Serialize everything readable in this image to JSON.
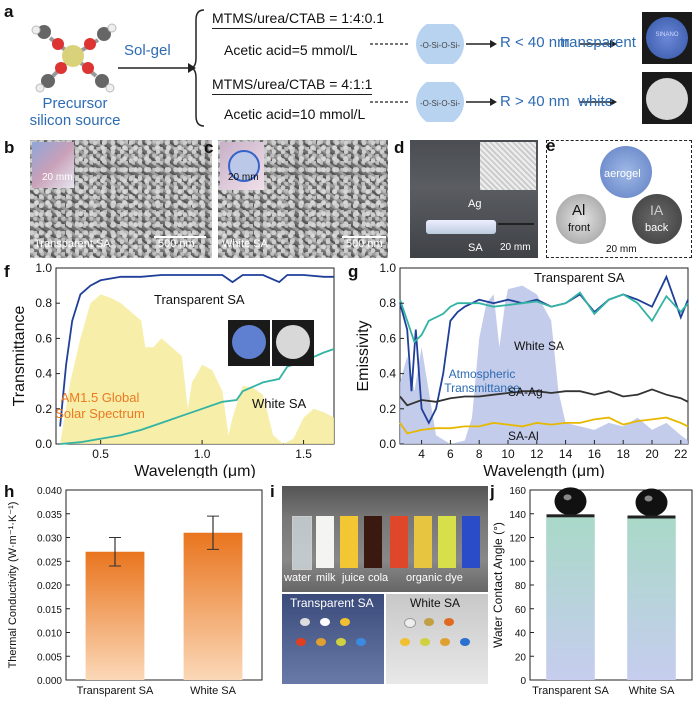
{
  "panel_a": {
    "label": "a",
    "precursor": "Precursor\nsilicon source",
    "method": "Sol-gel",
    "route1": {
      "recipe": "MTMS/urea/CTAB = 1:4:0.1",
      "acid": "Acetic acid=5 mmol/L",
      "size": "R < 40 nm",
      "result": "transparent"
    },
    "route2": {
      "recipe": "MTMS/urea/CTAB = 4:1:1",
      "acid": "Acetic acid=10 mmol/L",
      "size": "R > 40 nm",
      "result": "white"
    },
    "sample_text": "SINANO"
  },
  "panel_b": {
    "label": "b",
    "inset_scale": "20 mm",
    "caption": "Transparent SA",
    "scale": "500 nm"
  },
  "panel_c": {
    "label": "c",
    "inset_scale": "20 mm",
    "caption": "White SA",
    "scale": "500 nm"
  },
  "panel_d": {
    "label": "d",
    "top": "Ag",
    "bottom": "SA",
    "scale": "20 mm"
  },
  "panel_e": {
    "label": "e",
    "aerogel": "aerogel",
    "al_mark": "Al",
    "al_sub": "front",
    "back_mark": "IA",
    "back_sub": "back",
    "scale": "20 mm"
  },
  "panel_f": {
    "label": "f"
  },
  "panel_g": {
    "label": "g"
  },
  "panel_h": {
    "label": "h"
  },
  "panel_i": {
    "label": "i",
    "liquids": [
      "water",
      "milk",
      "juice",
      "cola",
      "organic dye"
    ],
    "left_caption": "Transparent SA",
    "right_caption": "White SA"
  },
  "panel_j": {
    "label": "j"
  },
  "colors": {
    "accent_blue": "#2d6bb3",
    "orange": "#ec7a22",
    "teal": "#33b3a3",
    "navy": "#1f3f99",
    "yellow": "#f4d43a"
  },
  "chart_data": [
    {
      "id": "f",
      "type": "line",
      "xlabel": "Wavelength (μm)",
      "ylabel": "Transmittance",
      "xlim": [
        0.28,
        1.65
      ],
      "ylim": [
        0,
        1.0
      ],
      "xticks": [
        0.5,
        1.0,
        1.5
      ],
      "xticklabels": [
        "0.5",
        "1.0",
        "1.5"
      ],
      "yticks": [
        0.0,
        0.2,
        0.4,
        0.6,
        0.8,
        1.0
      ],
      "yticklabels": [
        "0.0",
        "0.2",
        "0.4",
        "0.6",
        "0.8",
        "1.0"
      ],
      "series": [
        {
          "name": "Transparent SA",
          "color": "#1f3f99",
          "x": [
            0.3,
            0.33,
            0.36,
            0.4,
            0.45,
            0.5,
            0.6,
            0.7,
            0.8,
            0.9,
            1.0,
            1.1,
            1.15,
            1.2,
            1.3,
            1.38,
            1.42,
            1.5,
            1.6,
            1.65
          ],
          "y": [
            0.1,
            0.45,
            0.7,
            0.85,
            0.9,
            0.93,
            0.95,
            0.95,
            0.96,
            0.96,
            0.96,
            0.96,
            0.92,
            0.96,
            0.96,
            0.92,
            0.96,
            0.96,
            0.95,
            0.95
          ]
        },
        {
          "name": "White SA",
          "color": "#33b3a3",
          "x": [
            0.3,
            0.4,
            0.5,
            0.6,
            0.7,
            0.8,
            0.9,
            1.0,
            1.1,
            1.17,
            1.2,
            1.3,
            1.38,
            1.42,
            1.5,
            1.6,
            1.65
          ],
          "y": [
            0.0,
            0.01,
            0.03,
            0.05,
            0.08,
            0.12,
            0.16,
            0.2,
            0.24,
            0.25,
            0.3,
            0.35,
            0.37,
            0.44,
            0.47,
            0.52,
            0.54
          ]
        },
        {
          "name": "AM1.5 Global Solar Spectrum",
          "color": "#f4eb9a",
          "fill": true,
          "x": [
            0.3,
            0.35,
            0.4,
            0.45,
            0.5,
            0.55,
            0.6,
            0.65,
            0.7,
            0.72,
            0.76,
            0.8,
            0.85,
            0.9,
            0.93,
            0.95,
            1.0,
            1.05,
            1.1,
            1.13,
            1.15,
            1.2,
            1.25,
            1.3,
            1.35,
            1.4,
            1.45,
            1.5,
            1.55,
            1.6,
            1.65
          ],
          "y": [
            0.0,
            0.35,
            0.6,
            0.8,
            0.85,
            0.83,
            0.8,
            0.75,
            0.7,
            0.55,
            0.55,
            0.6,
            0.55,
            0.5,
            0.2,
            0.35,
            0.45,
            0.42,
            0.3,
            0.05,
            0.15,
            0.33,
            0.32,
            0.28,
            0.05,
            0.0,
            0.03,
            0.15,
            0.2,
            0.18,
            0.15
          ]
        }
      ],
      "legend": [
        "Transparent SA",
        "White SA",
        "AM1.5 Global",
        "Solar Spectrum"
      ]
    },
    {
      "id": "g",
      "type": "line",
      "xlabel": "Wavelength (μm)",
      "ylabel": "Emissivity",
      "xlim": [
        2.5,
        22.5
      ],
      "ylim": [
        0,
        1.0
      ],
      "xticks": [
        4,
        6,
        8,
        10,
        12,
        14,
        16,
        18,
        20,
        22
      ],
      "xticklabels": [
        "4",
        "6",
        "8",
        "10",
        "12",
        "14",
        "16",
        "18",
        "20",
        "22"
      ],
      "yticks": [
        0.0,
        0.2,
        0.4,
        0.6,
        0.8,
        1.0
      ],
      "yticklabels": [
        "0.0",
        "0.2",
        "0.4",
        "0.6",
        "0.8",
        "1.0"
      ],
      "series": [
        {
          "name": "Atmospheric Transmittance",
          "color": "#b8c3e6",
          "fill": true,
          "x": [
            2.5,
            3,
            3.5,
            4,
            4.5,
            5,
            6,
            7,
            7.5,
            8,
            8.5,
            9,
            9.4,
            9.8,
            10,
            11,
            12,
            13,
            13.5,
            14,
            15,
            16,
            17,
            18,
            19,
            20,
            21,
            22,
            22.5
          ],
          "y": [
            0.35,
            0.5,
            0.3,
            0.55,
            0.3,
            0.05,
            0.0,
            0.02,
            0.15,
            0.6,
            0.8,
            0.85,
            0.55,
            0.8,
            0.88,
            0.9,
            0.85,
            0.7,
            0.3,
            0.12,
            0.1,
            0.08,
            0.12,
            0.1,
            0.15,
            0.08,
            0.12,
            0.05,
            0.02
          ]
        },
        {
          "name": "Transparent SA",
          "color": "#1f3f99",
          "x": [
            2.5,
            3,
            3.3,
            3.6,
            4,
            4.5,
            5,
            5.5,
            6,
            6.5,
            7,
            7.5,
            8,
            9,
            10,
            11,
            12,
            13,
            14,
            15,
            16,
            17,
            18,
            19,
            20,
            21,
            22,
            22.5
          ],
          "y": [
            0.8,
            0.65,
            0.3,
            0.65,
            0.2,
            0.12,
            0.2,
            0.4,
            0.7,
            0.75,
            0.78,
            0.8,
            0.82,
            0.8,
            0.82,
            0.8,
            0.82,
            0.78,
            0.8,
            0.85,
            0.75,
            0.82,
            0.85,
            0.82,
            0.78,
            0.95,
            0.72,
            0.82
          ]
        },
        {
          "name": "White SA",
          "color": "#33b3a3",
          "x": [
            2.5,
            3,
            3.5,
            4,
            4.5,
            5,
            5.5,
            6,
            6.5,
            7,
            7.5,
            8,
            9,
            10,
            11,
            12,
            13,
            14,
            15,
            16,
            17,
            18,
            19,
            20,
            21,
            22,
            22.5
          ],
          "y": [
            0.82,
            0.7,
            0.58,
            0.62,
            0.7,
            0.72,
            0.74,
            0.78,
            0.8,
            0.8,
            0.8,
            0.8,
            0.78,
            0.79,
            0.8,
            0.81,
            0.78,
            0.8,
            0.86,
            0.74,
            0.82,
            0.85,
            0.8,
            0.7,
            0.84,
            0.75,
            0.8
          ]
        },
        {
          "name": "SA-Ag",
          "color": "#333333",
          "x": [
            2.5,
            3,
            4,
            5,
            6,
            7,
            8,
            9,
            10,
            11,
            12,
            13,
            14,
            15,
            16,
            17,
            18,
            19,
            20,
            21,
            22,
            22.5
          ],
          "y": [
            0.27,
            0.22,
            0.25,
            0.24,
            0.26,
            0.27,
            0.27,
            0.28,
            0.29,
            0.3,
            0.3,
            0.29,
            0.3,
            0.3,
            0.28,
            0.3,
            0.27,
            0.28,
            0.31,
            0.28,
            0.26,
            0.24
          ]
        },
        {
          "name": "SA-Al",
          "color": "#e6b800",
          "x": [
            2.5,
            3,
            4,
            5,
            6,
            7,
            8,
            9,
            10,
            11,
            12,
            13,
            14,
            15,
            16,
            17,
            18,
            19,
            20,
            21,
            22,
            22.5
          ],
          "y": [
            0.12,
            0.06,
            0.08,
            0.09,
            0.09,
            0.1,
            0.1,
            0.12,
            0.11,
            0.1,
            0.12,
            0.11,
            0.12,
            0.12,
            0.14,
            0.15,
            0.11,
            0.13,
            0.14,
            0.15,
            0.12,
            0.1
          ]
        }
      ],
      "annotations": [
        "Transparent SA",
        "White SA",
        "Atmospheric",
        "Transmittance",
        "SA-Ag",
        "SA-Al"
      ]
    },
    {
      "id": "h",
      "type": "bar",
      "ylabel": "Thermal Conductivity (W·m⁻¹·K⁻¹)",
      "categories": [
        "Transparent SA",
        "White SA"
      ],
      "values": [
        0.027,
        0.031
      ],
      "errors": [
        0.003,
        0.0035
      ],
      "ylim": [
        0,
        0.04
      ],
      "yticks": [
        0.0,
        0.005,
        0.01,
        0.015,
        0.02,
        0.025,
        0.03,
        0.035,
        0.04
      ],
      "yticklabels": [
        "0.000",
        "0.005",
        "0.010",
        "0.015",
        "0.020",
        "0.025",
        "0.030",
        "0.035",
        "0.040"
      ]
    },
    {
      "id": "j",
      "type": "bar",
      "ylabel": "Water Contact Angle (°)",
      "categories": [
        "Transparent SA",
        "White SA"
      ],
      "values": [
        137,
        136
      ],
      "ylim": [
        0,
        160
      ],
      "yticks": [
        0,
        20,
        40,
        60,
        80,
        100,
        120,
        140,
        160
      ],
      "yticklabels": [
        "0",
        "20",
        "40",
        "60",
        "80",
        "100",
        "120",
        "140",
        "160"
      ]
    }
  ]
}
